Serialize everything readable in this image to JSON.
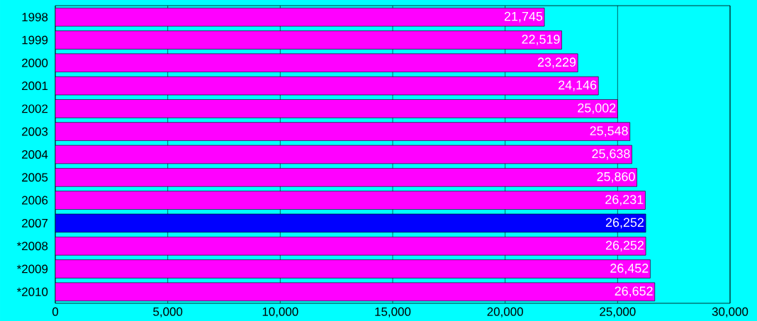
{
  "chart_data": {
    "type": "bar",
    "orientation": "horizontal",
    "categories": [
      "1998",
      "1999",
      "2000",
      "2001",
      "2002",
      "2003",
      "2004",
      "2005",
      "2006",
      "2007",
      "*2008",
      "*2009",
      "*2010"
    ],
    "values": [
      21745,
      22519,
      23229,
      24146,
      25002,
      25548,
      25638,
      25860,
      26231,
      26252,
      26252,
      26452,
      26652
    ],
    "value_labels": [
      "21,745",
      "22,519",
      "23,229",
      "24,146",
      "25,002",
      "25,548",
      "25,638",
      "25,860",
      "26,231",
      "26,252",
      "26,252",
      "26,452",
      "26,652"
    ],
    "colors": [
      "#ff00ff",
      "#ff00ff",
      "#ff00ff",
      "#ff00ff",
      "#ff00ff",
      "#ff00ff",
      "#ff00ff",
      "#ff00ff",
      "#ff00ff",
      "#0000ff",
      "#ff00ff",
      "#ff00ff",
      "#ff00ff"
    ],
    "xlim": [
      0,
      30000
    ],
    "xticks": [
      0,
      {
        "value": 5000,
        "label": "5,000"
      },
      {
        "value": 10000,
        "label": "10,000"
      },
      {
        "value": 15000,
        "label": "15,000"
      },
      {
        "value": 20000,
        "label": "20,000"
      },
      {
        "value": 25000,
        "label": "25,000"
      },
      {
        "value": 30000,
        "label": "30,000"
      }
    ],
    "grid": "x"
  }
}
